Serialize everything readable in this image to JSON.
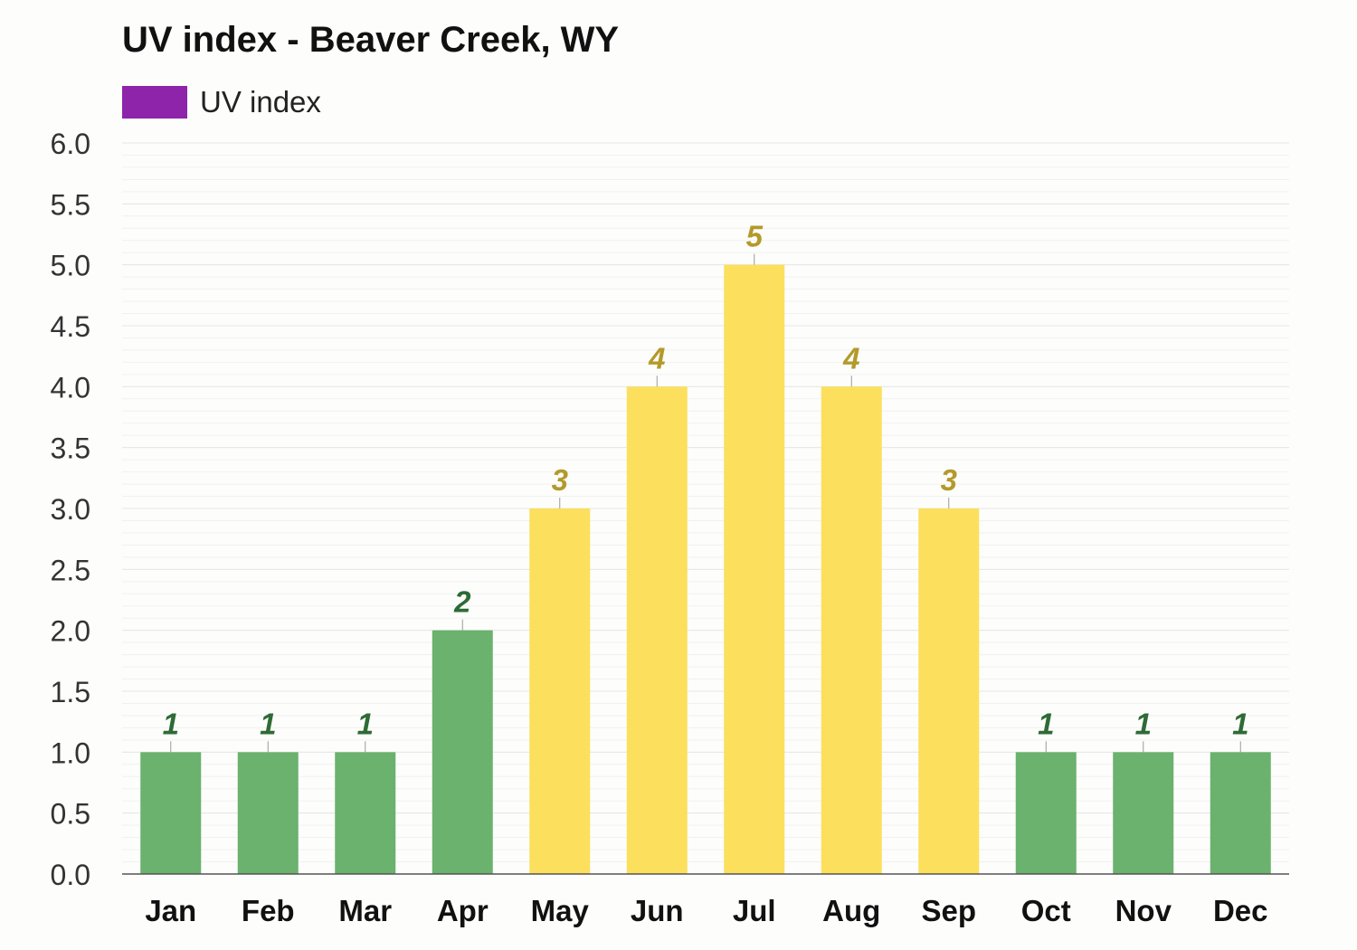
{
  "chart_data": {
    "type": "bar",
    "title": "UV index - Beaver Creek, WY",
    "xlabel": "",
    "ylabel": "",
    "ylim": [
      0,
      6
    ],
    "yticks": [
      "0.0",
      "0.5",
      "1.0",
      "1.5",
      "2.0",
      "2.5",
      "3.0",
      "3.5",
      "4.0",
      "4.5",
      "5.0",
      "5.5",
      "6.0"
    ],
    "categories": [
      "Jan",
      "Feb",
      "Mar",
      "Apr",
      "May",
      "Jun",
      "Jul",
      "Aug",
      "Sep",
      "Oct",
      "Nov",
      "Dec"
    ],
    "series": [
      {
        "name": "UV index",
        "values": [
          1,
          1,
          1,
          2,
          3,
          4,
          5,
          4,
          3,
          1,
          1,
          1
        ],
        "data_labels": [
          "1",
          "1",
          "1",
          "2",
          "3",
          "4",
          "5",
          "4",
          "3",
          "1",
          "1",
          "1"
        ]
      }
    ],
    "legend": {
      "position": "top-left",
      "swatch_color": "#8e24aa"
    },
    "grid": true,
    "colors": {
      "low_bar": "#6ab26d",
      "low_label": "#2e6b35",
      "moderate_bar": "#fcdf5c",
      "moderate_label": "#b39a2a",
      "moderate_threshold": 3,
      "axis": "#555555",
      "grid": "#e6e6e6"
    }
  }
}
